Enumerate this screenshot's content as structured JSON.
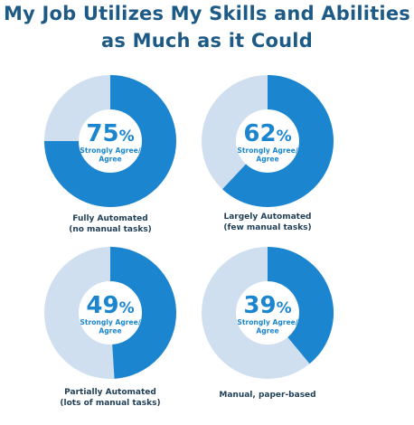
{
  "chart_data": {
    "type": "pie",
    "title": [
      "My Job Utilizes My Skills and Abilities",
      "as Much as it Could"
    ],
    "value_label": [
      "Strongly Agree/",
      "Agree"
    ],
    "categories": [
      {
        "label": [
          "Fully Automated",
          "(no manual tasks)"
        ],
        "value": 75,
        "pct_text": "75"
      },
      {
        "label": [
          "Largely Automated",
          "(few manual tasks)"
        ],
        "value": 62,
        "pct_text": "62"
      },
      {
        "label": [
          "Partially Automated",
          "(lots of manual tasks)"
        ],
        "value": 49,
        "pct_text": "49"
      },
      {
        "label": [
          "Manual, paper-based"
        ],
        "value": 39,
        "pct_text": "39"
      }
    ],
    "percent_symbol": "%",
    "colors": {
      "filled": "#1b86cf",
      "remaining": "#cfdff0",
      "title": "#1e5a86",
      "label": "#1f3f57"
    }
  }
}
